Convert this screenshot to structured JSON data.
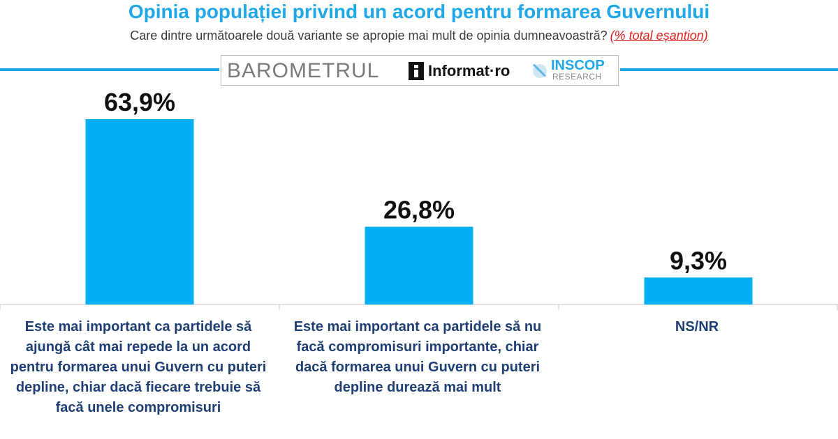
{
  "header": {
    "title": "Opinia populației privind un acord pentru formarea Guvernului",
    "question": "Care dintre următoarele două variante se apropie mai mult de opinia dumneavoastră?",
    "note": "(% total eșantion)"
  },
  "logos": {
    "barometrul": "BAROMETRUL",
    "informat": "Informat·ro",
    "inscop": "INSCOP",
    "research": "RESEARCH"
  },
  "colors": {
    "bar": "#00b0f0",
    "title": "#1fa7e6",
    "category_text": "#1f3e73"
  },
  "chart_data": {
    "type": "bar",
    "title": "Opinia populației privind un acord pentru formarea Guvernului",
    "xlabel": "",
    "ylabel": "",
    "categories": [
      "Este mai important ca partidele să ajungă cât mai repede la un acord pentru formarea unui Guvern cu puteri depline, chiar dacă fiecare trebuie să facă unele compromisuri",
      "Este mai important ca partidele să nu facă compromisuri importante, chiar dacă formarea unui Guvern cu puteri depline durează mai mult",
      "NS/NR"
    ],
    "values": [
      63.9,
      26.8,
      9.3
    ],
    "value_labels": [
      "63,9%",
      "26,8%",
      "9,3%"
    ],
    "ylim": [
      0,
      63.9
    ],
    "grid": false,
    "legend": "none"
  }
}
